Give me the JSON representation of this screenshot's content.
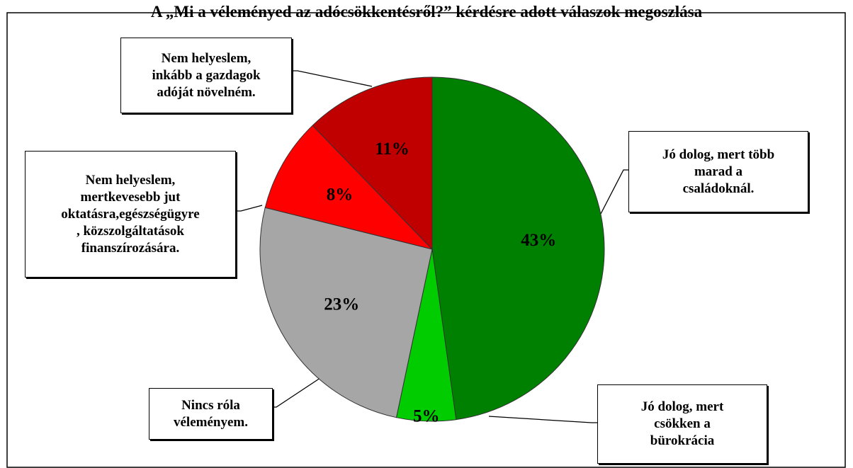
{
  "chart_data": {
    "type": "pie",
    "title": "A „Mi a véleményed az adócsökkentésről?” kérdésre adott válaszok megoszlása",
    "categories": [
      "Jó dolog, mert több\nmarad a\ncsaládoknál.",
      "Jó dolog, mert\ncsökken a\nbürokrácia",
      "Nincs róla\nvéleményem.",
      "Nem helyeslem,\nmertkevesebb jut\noktatásra,egészségügyre\n, közszolgáltatások\nfinanszírozására.",
      "Nem helyeslem,\ninkább a gazdagok\nadóját növelném."
    ],
    "values": [
      43,
      5,
      23,
      8,
      11
    ],
    "value_labels": [
      "43%",
      "5%",
      "23%",
      "8%",
      "11%"
    ],
    "colors": [
      "#008000",
      "#00cc00",
      "#a6a6a6",
      "#ff0000",
      "#c00000"
    ]
  }
}
